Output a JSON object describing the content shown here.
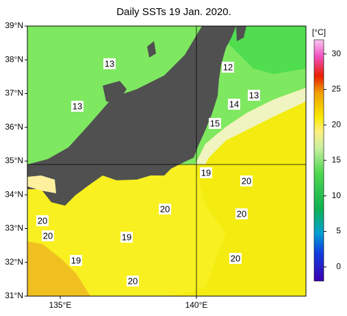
{
  "title": "Daily SSTs 19 Jan. 2020.",
  "lat_labels": [
    "39°N",
    "38°N",
    "37°N",
    "36°N",
    "35°N",
    "34°N",
    "33°N",
    "32°N",
    "31°N"
  ],
  "lon_labels": [
    "135°E",
    "140°E"
  ],
  "colorbar": {
    "unit": "[°C]",
    "ticks": [
      30,
      25,
      20,
      15,
      10,
      5,
      0
    ],
    "range": [
      -2,
      32
    ]
  },
  "contour_labels": [
    "13",
    "13",
    "12",
    "13",
    "14",
    "15",
    "19",
    "20",
    "20",
    "20",
    "20",
    "20",
    "19",
    "19",
    "20",
    "20"
  ]
}
